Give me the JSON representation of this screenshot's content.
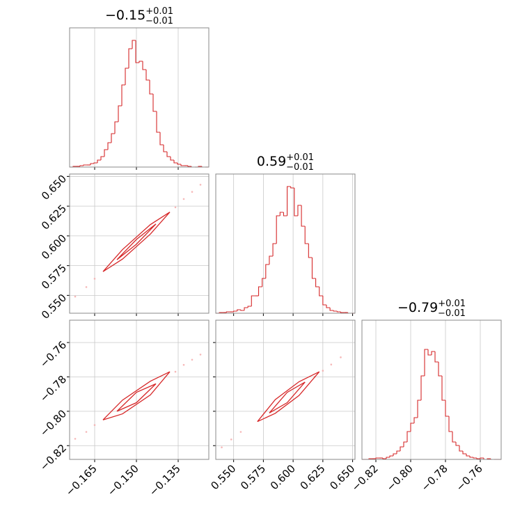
{
  "chart_data": [
    {
      "type": "histogram",
      "title": "−0.15",
      "title_plus": "+0.01",
      "title_minus": "−0.01",
      "color": "#d62728",
      "bins": [
        -0.174,
        -0.17275,
        -0.1715,
        -0.17025,
        -0.169,
        -0.16775,
        -0.1665,
        -0.16525,
        -0.164,
        -0.16275,
        -0.1615,
        -0.16025,
        -0.159,
        -0.15775,
        -0.1565,
        -0.15525,
        -0.154,
        -0.15275,
        -0.1515,
        -0.15025,
        -0.149,
        -0.14775,
        -0.1465,
        -0.14525,
        -0.144,
        -0.14275,
        -0.1415,
        -0.14025,
        -0.139,
        -0.13775,
        -0.1365,
        -0.13525,
        -0.134,
        -0.13275,
        -0.1315,
        -0.13025,
        -0.129,
        -0.12775,
        -0.1265,
        -0.12525,
        -0.124
      ],
      "values": [
        0,
        1,
        1,
        2,
        3,
        3,
        5,
        6,
        10,
        15,
        25,
        35,
        48,
        65,
        88,
        118,
        142,
        170,
        182,
        150,
        152,
        140,
        125,
        105,
        80,
        50,
        32,
        22,
        15,
        10,
        6,
        4,
        2,
        2,
        1,
        0,
        0,
        1,
        0,
        0
      ],
      "xlim": [
        -0.174,
        -0.124
      ],
      "ylim": [
        0,
        200
      ],
      "xticks": [
        -0.165,
        -0.15,
        -0.135
      ],
      "grid": true
    },
    {
      "type": "scatter",
      "color": "#f4a6a6",
      "contour_color": "#d62728",
      "x": [
        -0.172,
        -0.168,
        -0.165,
        -0.136,
        -0.133,
        -0.13,
        -0.127
      ],
      "y": [
        0.549,
        0.557,
        0.564,
        0.624,
        0.631,
        0.637,
        0.643
      ],
      "contours": [
        {
          "x": [
            -0.162,
            -0.155,
            -0.145,
            -0.138,
            -0.145,
            -0.155
          ],
          "y": [
            0.57,
            0.5885,
            0.6095,
            0.62,
            0.6015,
            0.5805
          ]
        },
        {
          "x": [
            -0.157,
            -0.15,
            -0.143,
            -0.15
          ],
          "y": [
            0.58,
            0.597,
            0.61,
            0.593
          ]
        }
      ],
      "xlim": [
        -0.174,
        -0.124
      ],
      "ylim": [
        0.535,
        0.652
      ],
      "xticks": [
        -0.165,
        -0.15,
        -0.135
      ],
      "yticks": [
        {
          "value": 0.55,
          "label": "0.550"
        },
        {
          "value": 0.575,
          "label": "0.575"
        },
        {
          "value": 0.6,
          "label": "0.600"
        },
        {
          "value": 0.625,
          "label": "0.625"
        },
        {
          "value": 0.65,
          "label": "0.650"
        }
      ],
      "grid": true
    },
    {
      "type": "histogram",
      "title": "0.59",
      "title_plus": "+0.01",
      "title_minus": "−0.01",
      "color": "#d62728",
      "bins": [
        0.535,
        0.538,
        0.541,
        0.544,
        0.547,
        0.55,
        0.553,
        0.556,
        0.559,
        0.562,
        0.565,
        0.568,
        0.571,
        0.574,
        0.577,
        0.58,
        0.583,
        0.586,
        0.589,
        0.592,
        0.595,
        0.598,
        0.601,
        0.604,
        0.607,
        0.61,
        0.613,
        0.616,
        0.619,
        0.622,
        0.625,
        0.628,
        0.631,
        0.634,
        0.637,
        0.64,
        0.643,
        0.646,
        0.649,
        0.652
      ],
      "values": [
        0,
        1,
        1,
        2,
        2,
        3,
        5,
        4,
        8,
        10,
        25,
        25,
        38,
        50,
        70,
        82,
        100,
        140,
        145,
        140,
        182,
        180,
        140,
        155,
        125,
        100,
        80,
        50,
        38,
        25,
        12,
        8,
        4,
        3,
        2,
        1,
        1,
        0,
        0
      ],
      "xlim": [
        0.535,
        0.652
      ],
      "ylim": [
        0,
        200
      ],
      "xticks": [
        0.55,
        0.575,
        0.6,
        0.625,
        0.65
      ],
      "grid": true
    },
    {
      "type": "scatter",
      "color": "#f4a6a6",
      "contour_color": "#d62728",
      "x": [
        -0.172,
        -0.168,
        -0.165,
        -0.136,
        -0.133,
        -0.13,
        -0.127
      ],
      "y": [
        -0.816,
        -0.812,
        -0.808,
        -0.777,
        -0.773,
        -0.77,
        -0.767
      ],
      "contours": [
        {
          "x": [
            -0.162,
            -0.155,
            -0.145,
            -0.138,
            -0.145,
            -0.155
          ],
          "y": [
            -0.805,
            -0.7935,
            -0.7825,
            -0.777,
            -0.7905,
            -0.8015
          ]
        },
        {
          "x": [
            -0.157,
            -0.15,
            -0.143,
            -0.15
          ],
          "y": [
            -0.8,
            -0.789,
            -0.784,
            -0.795
          ]
        }
      ],
      "xlim": [
        -0.174,
        -0.124
      ],
      "ylim": [
        -0.828,
        -0.747
      ],
      "xticks": [
        {
          "value": -0.165,
          "label": "−0.165"
        },
        {
          "value": -0.15,
          "label": "−0.150"
        },
        {
          "value": -0.135,
          "label": "−0.135"
        }
      ],
      "yticks": [
        {
          "value": -0.82,
          "label": "−0.82"
        },
        {
          "value": -0.8,
          "label": "−0.80"
        },
        {
          "value": -0.78,
          "label": "−0.78"
        },
        {
          "value": -0.76,
          "label": "−0.76"
        }
      ],
      "grid": true
    },
    {
      "type": "scatter",
      "color": "#f4a6a6",
      "contour_color": "#d62728",
      "x": [
        0.54,
        0.548,
        0.556,
        0.618,
        0.625,
        0.632,
        0.64
      ],
      "y": [
        -0.821,
        -0.8164,
        -0.812,
        -0.78,
        -0.7764,
        -0.7728,
        -0.7686
      ],
      "contours": [
        {
          "x": [
            0.57,
            0.585,
            0.605,
            0.622,
            0.605,
            0.585
          ],
          "y": [
            -0.806,
            -0.7932,
            -0.7828,
            -0.777,
            -0.7908,
            -0.8012
          ]
        },
        {
          "x": [
            0.58,
            0.595,
            0.61,
            0.595
          ],
          "y": [
            -0.801,
            -0.789,
            -0.783,
            -0.795
          ]
        }
      ],
      "xlim": [
        0.535,
        0.652
      ],
      "ylim": [
        -0.828,
        -0.747
      ],
      "xticks": [
        {
          "value": 0.55,
          "label": "0.550"
        },
        {
          "value": 0.575,
          "label": "0.575"
        },
        {
          "value": 0.6,
          "label": "0.600"
        },
        {
          "value": 0.625,
          "label": "0.625"
        },
        {
          "value": 0.65,
          "label": "0.650"
        }
      ],
      "yticks": [
        -0.82,
        -0.8,
        -0.78,
        -0.76
      ],
      "grid": true
    },
    {
      "type": "histogram",
      "title": "−0.79",
      "title_plus": "+0.01",
      "title_minus": "−0.01",
      "color": "#d62728",
      "bins": [
        -0.828,
        -0.826,
        -0.824,
        -0.822,
        -0.82,
        -0.818,
        -0.816,
        -0.814,
        -0.812,
        -0.81,
        -0.808,
        -0.806,
        -0.804,
        -0.802,
        -0.8,
        -0.798,
        -0.796,
        -0.794,
        -0.792,
        -0.79,
        -0.788,
        -0.786,
        -0.784,
        -0.782,
        -0.78,
        -0.778,
        -0.776,
        -0.774,
        -0.772,
        -0.77,
        -0.768,
        -0.766,
        -0.764,
        -0.762,
        -0.76,
        -0.758,
        -0.756,
        -0.754,
        -0.752,
        -0.75,
        -0.748
      ],
      "values": [
        0,
        0,
        1,
        1,
        2,
        2,
        1,
        3,
        5,
        8,
        12,
        18,
        25,
        40,
        52,
        60,
        85,
        120,
        158,
        150,
        155,
        140,
        120,
        85,
        62,
        40,
        25,
        20,
        12,
        8,
        5,
        3,
        2,
        1,
        2,
        0,
        1,
        0,
        0,
        0
      ],
      "xlim": [
        -0.828,
        -0.748
      ],
      "ylim": [
        0,
        200
      ],
      "xticks": [
        {
          "value": -0.82,
          "label": "−0.82"
        },
        {
          "value": -0.8,
          "label": "−0.80"
        },
        {
          "value": -0.78,
          "label": "−0.78"
        },
        {
          "value": -0.76,
          "label": "−0.76"
        }
      ],
      "grid": true
    }
  ]
}
